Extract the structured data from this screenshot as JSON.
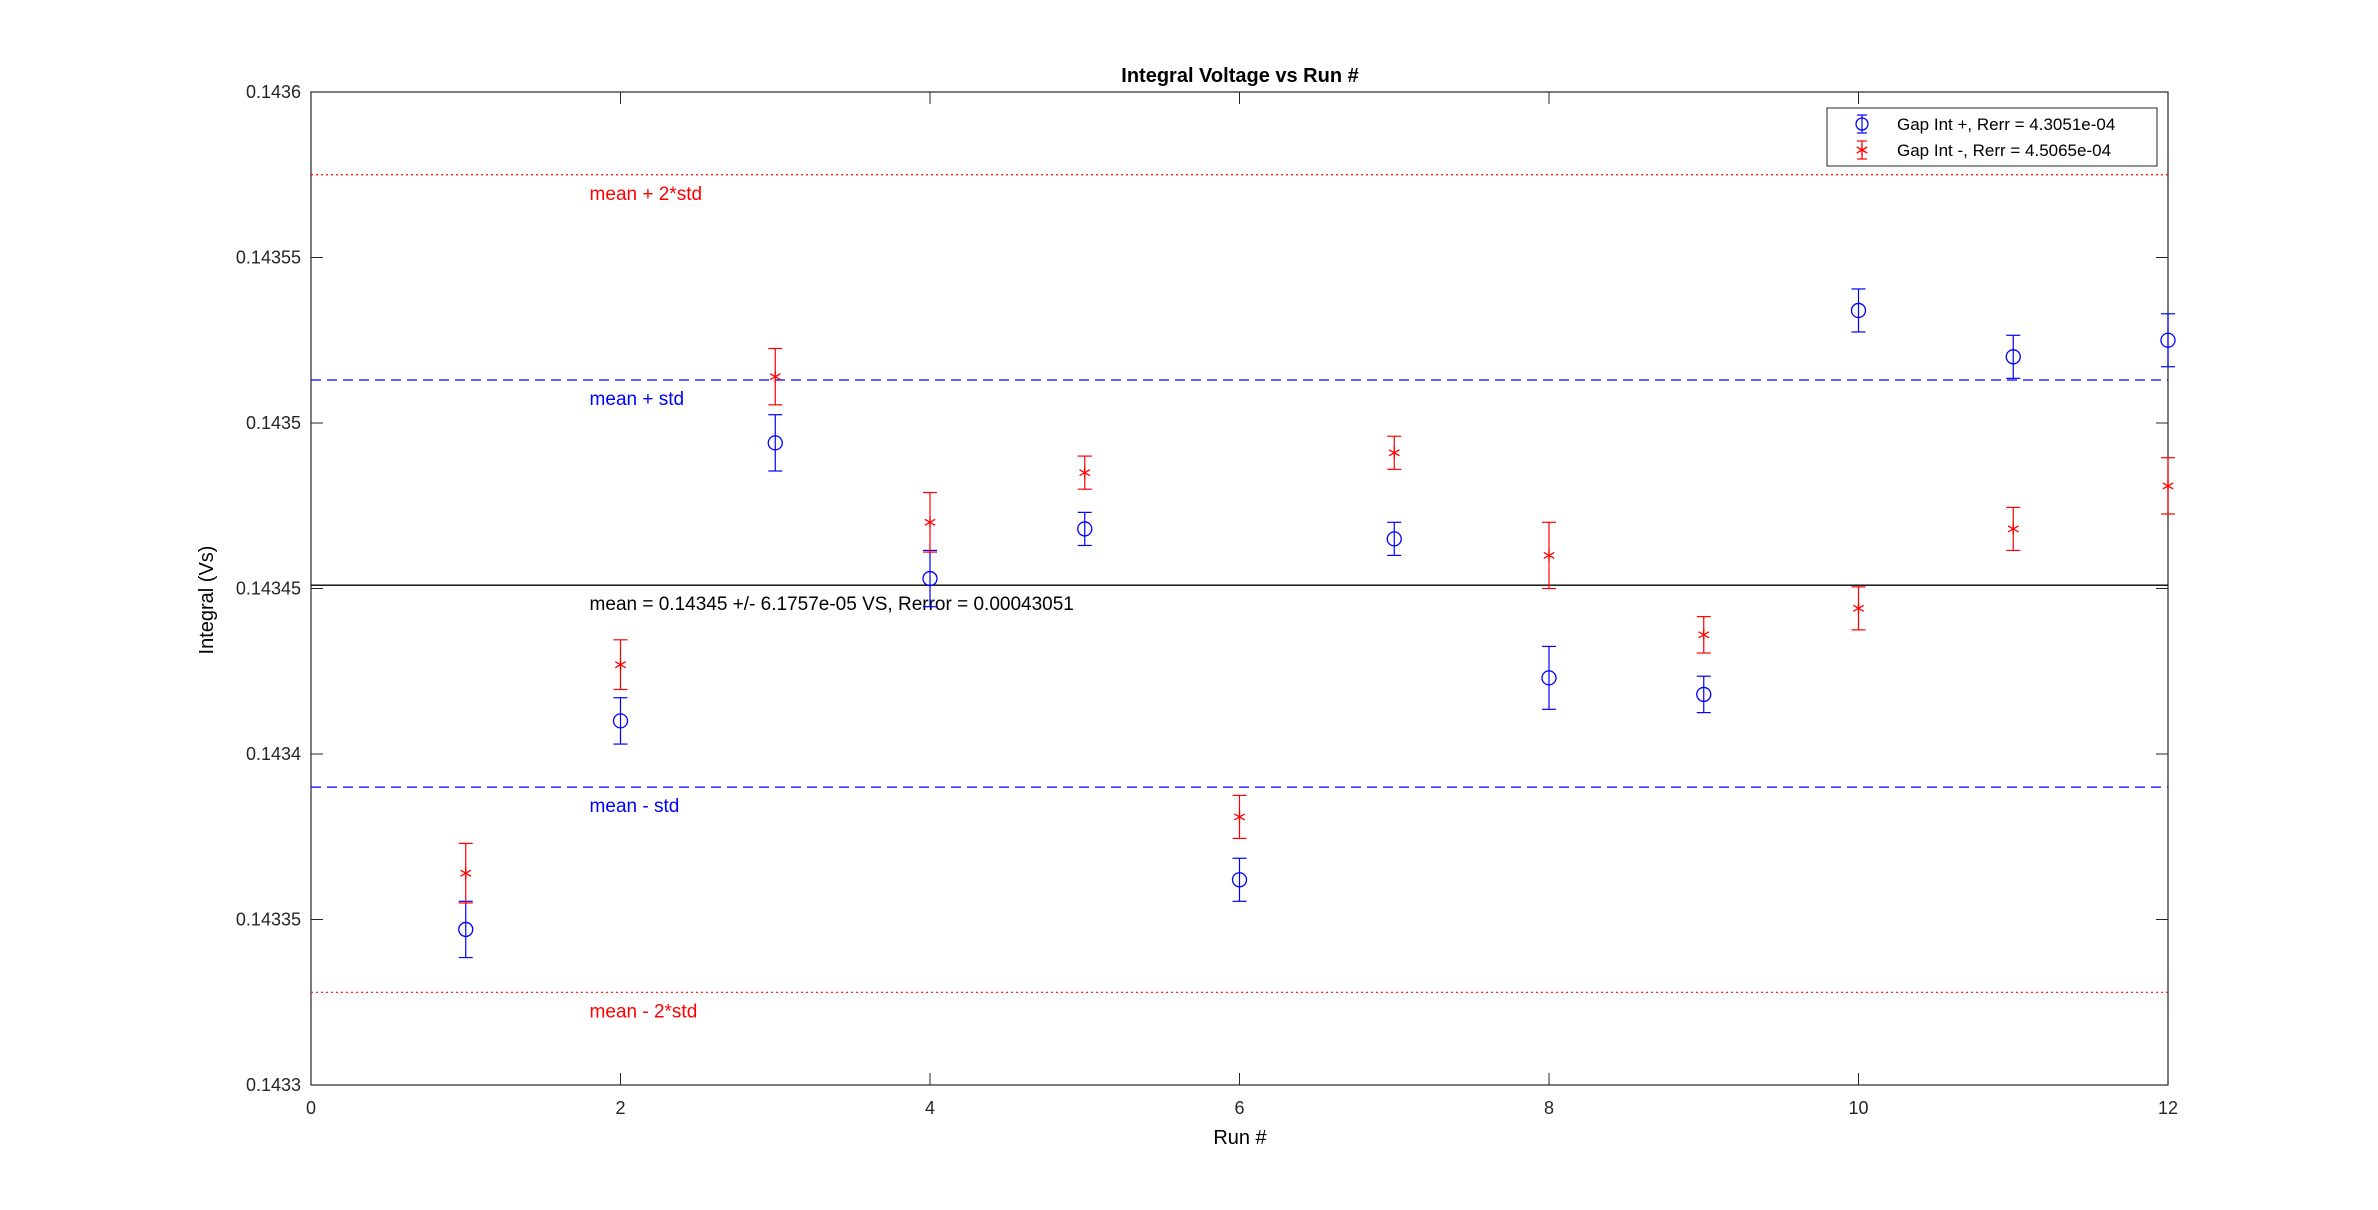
{
  "chart_data": {
    "type": "scatter",
    "title": "Integral Voltage vs Run #",
    "xlabel": "Run #",
    "ylabel": "Integral (Vs)",
    "xlim": [
      0,
      12
    ],
    "ylim": [
      0.1433,
      0.1436
    ],
    "xticks": [
      "0",
      "2",
      "4",
      "6",
      "8",
      "10",
      "12"
    ],
    "yticks": [
      "0.1433",
      "0.14335",
      "0.1434",
      "0.14345",
      "0.1435",
      "0.14355",
      "0.1436"
    ],
    "grid": false,
    "legend_position": "top-right",
    "series": [
      {
        "name": "Gap Int +, Rerr = 4.3051e-04",
        "marker": "circle",
        "color": "#0000ff",
        "x": [
          1,
          2,
          3,
          4,
          5,
          6,
          7,
          8,
          9,
          10,
          11,
          12
        ],
        "y": [
          0.143347,
          0.14341,
          0.143494,
          0.143453,
          0.143468,
          0.143362,
          0.143465,
          0.143423,
          0.143418,
          0.143534,
          0.14352,
          0.143525
        ],
        "err": [
          8.5e-06,
          7e-06,
          8.5e-06,
          8.5e-06,
          5e-06,
          6.5e-06,
          5e-06,
          9.5e-06,
          5.5e-06,
          6.5e-06,
          6.5e-06,
          8e-06
        ]
      },
      {
        "name": "Gap Int -, Rerr = 4.5065e-04",
        "marker": "asterisk",
        "color": "#ff0000",
        "x": [
          1,
          2,
          3,
          4,
          5,
          6,
          7,
          8,
          9,
          10,
          11,
          12
        ],
        "y": [
          0.143364,
          0.143427,
          0.143514,
          0.14347,
          0.143485,
          0.143381,
          0.143491,
          0.14346,
          0.143436,
          0.143444,
          0.143468,
          0.143481
        ],
        "err": [
          9e-06,
          7.5e-06,
          8.5e-06,
          9e-06,
          5e-06,
          6.5e-06,
          5e-06,
          1e-05,
          5.5e-06,
          6.5e-06,
          6.5e-06,
          8.5e-06
        ]
      }
    ],
    "reference_lines": [
      {
        "y": 0.143575,
        "style": "dotted",
        "color": "#ff0000",
        "label": "mean + 2*std",
        "label_color": "#ff0000"
      },
      {
        "y": 0.143513,
        "style": "dashed",
        "color": "#0000ff",
        "label": "mean + std",
        "label_color": "#0000ff"
      },
      {
        "y": 0.143451,
        "style": "solid",
        "color": "#000000",
        "label": "mean = 0.14345 +/- 6.1757e-05 VS, Rerror = 0.00043051",
        "label_color": "#000000"
      },
      {
        "y": 0.14339,
        "style": "dashed",
        "color": "#0000ff",
        "label": "mean - std",
        "label_color": "#0000ff"
      },
      {
        "y": 0.143328,
        "style": "dotted",
        "color": "#ff0000",
        "label": "mean - 2*std",
        "label_color": "#ff0000"
      }
    ]
  }
}
